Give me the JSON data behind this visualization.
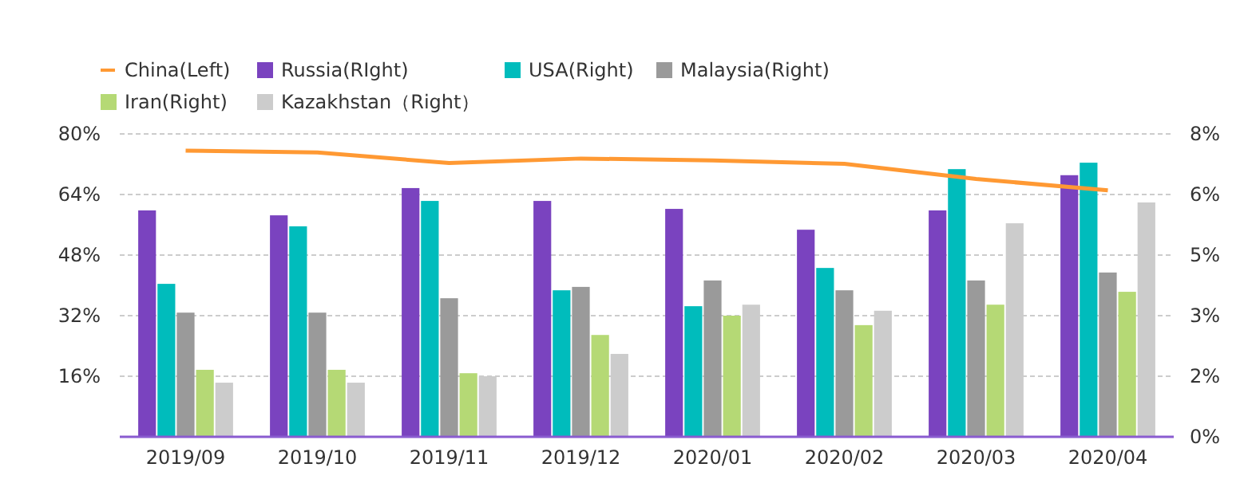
{
  "chart_data": {
    "type": "bar",
    "categories": [
      "2019/09",
      "2019/10",
      "2019/11",
      "2019/12",
      "2020/01",
      "2020/02",
      "2020/03",
      "2020/04"
    ],
    "series": [
      {
        "name": "China(Left)",
        "type": "line",
        "color": "#ff9933",
        "values": [
          75.6,
          75.1,
          72.3,
          73.5,
          73.0,
          72.1,
          68.1,
          65.1
        ]
      },
      {
        "name": "Russia(RIght)",
        "axis": "y2",
        "color": "#7a43bf",
        "values": [
          5.98,
          5.85,
          6.57,
          6.23,
          6.02,
          5.47,
          5.98,
          6.91
        ]
      },
      {
        "name": "USA(Right)",
        "axis": "y2",
        "color": "#00bcbc",
        "values": [
          4.04,
          5.56,
          6.23,
          3.87,
          3.45,
          4.46,
          7.07,
          7.24
        ]
      },
      {
        "name": "Malaysia(Right)",
        "axis": "y2",
        "color": "#9a9a9a",
        "values": [
          3.28,
          3.28,
          3.66,
          3.96,
          4.13,
          3.87,
          4.13,
          4.34
        ]
      },
      {
        "name": "Iran(Right)",
        "axis": "y2",
        "color": "#b5d975",
        "values": [
          1.77,
          1.77,
          1.68,
          2.69,
          3.2,
          2.95,
          3.49,
          3.83
        ]
      },
      {
        "name": "Kazakhstan（Right）",
        "axis": "y2",
        "color": "#cccccc",
        "values": [
          1.43,
          1.43,
          1.6,
          2.19,
          3.49,
          3.33,
          5.64,
          6.19
        ]
      }
    ],
    "ylim": [
      0,
      80
    ],
    "yticks": [
      {
        "value": 16,
        "label": "16%"
      },
      {
        "value": 32,
        "label": "32%"
      },
      {
        "value": 48,
        "label": "48%"
      },
      {
        "value": 64,
        "label": "64%"
      },
      {
        "value": 80,
        "label": "80%"
      }
    ],
    "y2lim": [
      0,
      8
    ],
    "y2ticks": [
      {
        "value": 0,
        "label": "0%"
      },
      {
        "value": 1.6,
        "label": "2%"
      },
      {
        "value": 3.2,
        "label": "3%"
      },
      {
        "value": 4.8,
        "label": "5%"
      },
      {
        "value": 6.4,
        "label": "6%"
      },
      {
        "value": 8,
        "label": "8%"
      }
    ],
    "grid": "y",
    "legend": "top",
    "marker": "none"
  }
}
